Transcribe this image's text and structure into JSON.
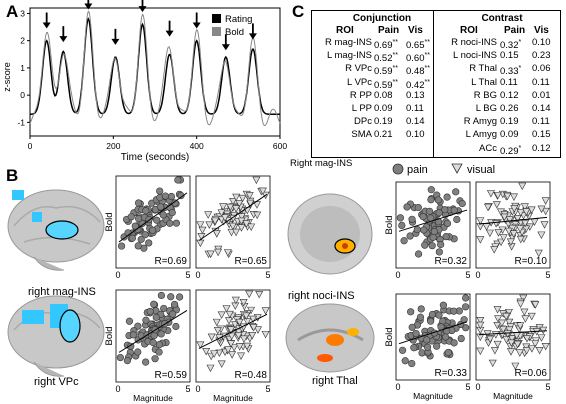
{
  "panels": {
    "a": "A",
    "b": "B",
    "c": "C"
  },
  "panel_a": {
    "ylabel": "z-score",
    "xlabel": "Time (seconds)",
    "legend": [
      {
        "label": "Rating",
        "color": "#000000"
      },
      {
        "label": "Bold",
        "color": "#888888"
      }
    ],
    "yticks": [
      "3",
      "2",
      "1",
      "0",
      "-1"
    ],
    "xticks": [
      "0",
      "200",
      "400",
      "600"
    ]
  },
  "panel_c": {
    "conjunction": {
      "title": "Conjunction",
      "headers": [
        "ROI",
        "Pain",
        "Vis"
      ],
      "rows": [
        [
          "R mag-INS",
          "0.69",
          "**",
          "0.65",
          "**"
        ],
        [
          "L mag-INS",
          "0.52",
          "**",
          "0.60",
          "**"
        ],
        [
          "R VPc",
          "0.59",
          "**",
          "0.48",
          "**"
        ],
        [
          "L VPc",
          "0.59",
          "**",
          "0.42",
          "**"
        ],
        [
          "R PP",
          "0.08",
          "",
          "0.13",
          ""
        ],
        [
          "L PP",
          "0.09",
          "",
          "0.11",
          ""
        ],
        [
          "DPc",
          "0.19",
          "",
          "0.14",
          ""
        ],
        [
          "SMA",
          "0.21",
          "",
          "0.10",
          ""
        ]
      ]
    },
    "contrast": {
      "title": "Contrast",
      "headers": [
        "ROI",
        "Pain",
        "Vis"
      ],
      "rows": [
        [
          "R noci-INS",
          "0.32",
          "*",
          "0.10",
          ""
        ],
        [
          "L noci-INS",
          "0.15",
          "",
          "0.23",
          ""
        ],
        [
          "R Thal",
          "0.33",
          "*",
          "0.06",
          ""
        ],
        [
          "L Thal",
          "0.11",
          "",
          "0.11",
          ""
        ],
        [
          "R BG",
          "0.12",
          "",
          "0.01",
          ""
        ],
        [
          "L BG",
          "0.26",
          "",
          "0.14",
          ""
        ],
        [
          "R Amyg",
          "0.19",
          "",
          "0.11",
          ""
        ],
        [
          "L Amyg",
          "0.09",
          "",
          "0.15",
          ""
        ],
        [
          "ACc",
          "0.29",
          "*",
          "0.12",
          ""
        ]
      ]
    }
  },
  "panel_b": {
    "legend_region": "Right mag-INS",
    "legend": [
      {
        "label": "pain",
        "marker": "circle"
      },
      {
        "label": "visual",
        "marker": "triangle"
      }
    ],
    "ylabel": "Bold",
    "xlabel": "Magnitude",
    "xticks": [
      "0",
      "5"
    ],
    "plots": [
      {
        "region": "right mag-INS",
        "r_pain": "R=0.69",
        "r_vis": "R=0.65"
      },
      {
        "region": "right VPc",
        "r_pain": "R=0.59",
        "r_vis": "R=0.48"
      },
      {
        "region": "right noci-INS",
        "r_pain": "R=0.32",
        "r_vis": "R=0.10"
      },
      {
        "region": "right Thal",
        "r_pain": "R=0.33",
        "r_vis": "R=0.06"
      }
    ]
  },
  "chart_data": [
    {
      "type": "line",
      "xlabel": "Time (seconds)",
      "ylabel": "z-score",
      "xlim": [
        0,
        600
      ],
      "ylim": [
        -1.5,
        3.2
      ],
      "series": [
        {
          "name": "Rating",
          "color": "#000000",
          "peaks": [
            [
              40,
              2.0
            ],
            [
              80,
              1.6
            ],
            [
              140,
              2.8
            ],
            [
              205,
              1.4
            ],
            [
              270,
              2.6
            ],
            [
              335,
              1.5
            ],
            [
              400,
              2.0
            ],
            [
              470,
              1.4
            ],
            [
              535,
              1.7
            ]
          ]
        },
        {
          "name": "Bold",
          "color": "#888888",
          "peaks": [
            [
              40,
              2.3
            ],
            [
              80,
              1.8
            ],
            [
              140,
              3.0
            ],
            [
              205,
              1.7
            ],
            [
              270,
              2.9
            ],
            [
              335,
              2.0
            ],
            [
              400,
              2.3
            ],
            [
              470,
              1.5
            ],
            [
              535,
              1.9
            ]
          ]
        }
      ],
      "arrows_at": [
        40,
        80,
        140,
        205,
        270,
        335,
        400,
        470,
        535
      ]
    },
    {
      "type": "scatter",
      "region": "right mag-INS",
      "series": "pain",
      "r": 0.69,
      "xlim": [
        0,
        5
      ]
    },
    {
      "type": "scatter",
      "region": "right mag-INS",
      "series": "visual",
      "r": 0.65,
      "xlim": [
        0,
        5
      ]
    },
    {
      "type": "scatter",
      "region": "right VPc",
      "series": "pain",
      "r": 0.59,
      "xlim": [
        0,
        5
      ]
    },
    {
      "type": "scatter",
      "region": "right VPc",
      "series": "visual",
      "r": 0.48,
      "xlim": [
        0,
        5
      ]
    },
    {
      "type": "scatter",
      "region": "right noci-INS",
      "series": "pain",
      "r": 0.32,
      "xlim": [
        0,
        5
      ]
    },
    {
      "type": "scatter",
      "region": "right noci-INS",
      "series": "visual",
      "r": 0.1,
      "xlim": [
        0,
        5
      ]
    },
    {
      "type": "scatter",
      "region": "right Thal",
      "series": "pain",
      "r": 0.33,
      "xlim": [
        0,
        5
      ]
    },
    {
      "type": "scatter",
      "region": "right Thal",
      "series": "visual",
      "r": 0.06,
      "xlim": [
        0,
        5
      ]
    }
  ]
}
